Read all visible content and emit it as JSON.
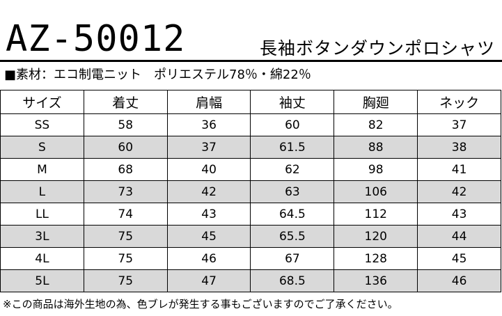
{
  "header": {
    "product_code": "AZ-50012",
    "product_name": "長袖ボタンダウンポロシャツ"
  },
  "material_line": "■素材：エコ制電ニット　ポリエステル78％・綿22％",
  "table": {
    "headers": [
      "サイズ",
      "着丈",
      "肩幅",
      "袖丈",
      "胸廻",
      "ネック"
    ],
    "rows": [
      [
        "SS",
        "58",
        "36",
        "60",
        "82",
        "37"
      ],
      [
        "S",
        "60",
        "37",
        "61.5",
        "88",
        "38"
      ],
      [
        "M",
        "68",
        "40",
        "62",
        "98",
        "41"
      ],
      [
        "L",
        "73",
        "42",
        "63",
        "106",
        "42"
      ],
      [
        "LL",
        "74",
        "43",
        "64.5",
        "112",
        "43"
      ],
      [
        "3L",
        "75",
        "45",
        "65.5",
        "120",
        "44"
      ],
      [
        "4L",
        "75",
        "46",
        "67",
        "128",
        "45"
      ],
      [
        "5L",
        "75",
        "47",
        "68.5",
        "136",
        "46"
      ]
    ],
    "shaded_row_color": "#d9d9d9"
  },
  "footnote": "※この商品は海外生地の為、色ブレが発生する事もございますのでご了承ください。"
}
